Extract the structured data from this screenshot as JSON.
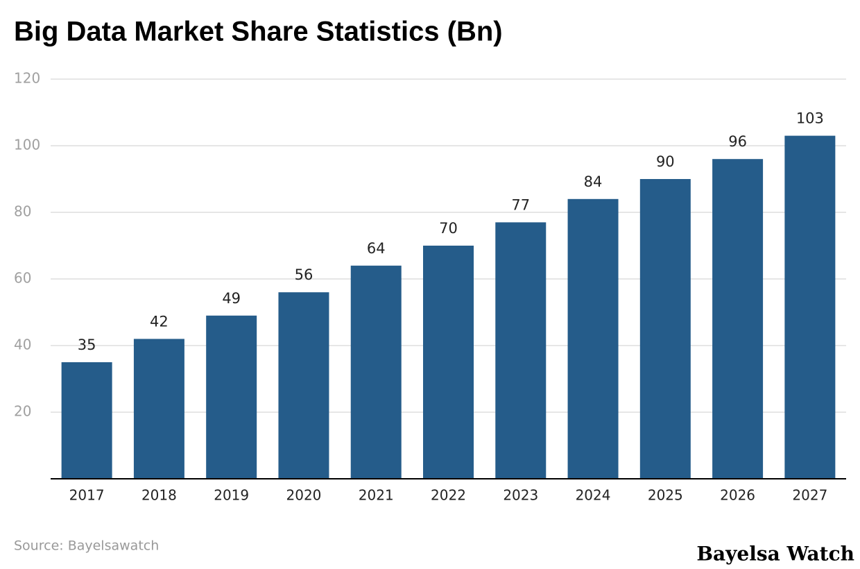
{
  "chart_data": {
    "type": "bar",
    "title": "Big Data Market Share Statistics (Bn)",
    "categories": [
      "2017",
      "2018",
      "2019",
      "2020",
      "2021",
      "2022",
      "2023",
      "2024",
      "2025",
      "2026",
      "2027"
    ],
    "values": [
      35,
      42,
      49,
      56,
      64,
      70,
      77,
      84,
      90,
      96,
      103
    ],
    "color": "#255c8a",
    "ylim": [
      0,
      120
    ],
    "yticks": [
      20,
      40,
      60,
      80,
      100,
      120
    ],
    "grid": true,
    "source": "Source: Bayelsawatch",
    "watermark": "Bayelsa Watch"
  }
}
